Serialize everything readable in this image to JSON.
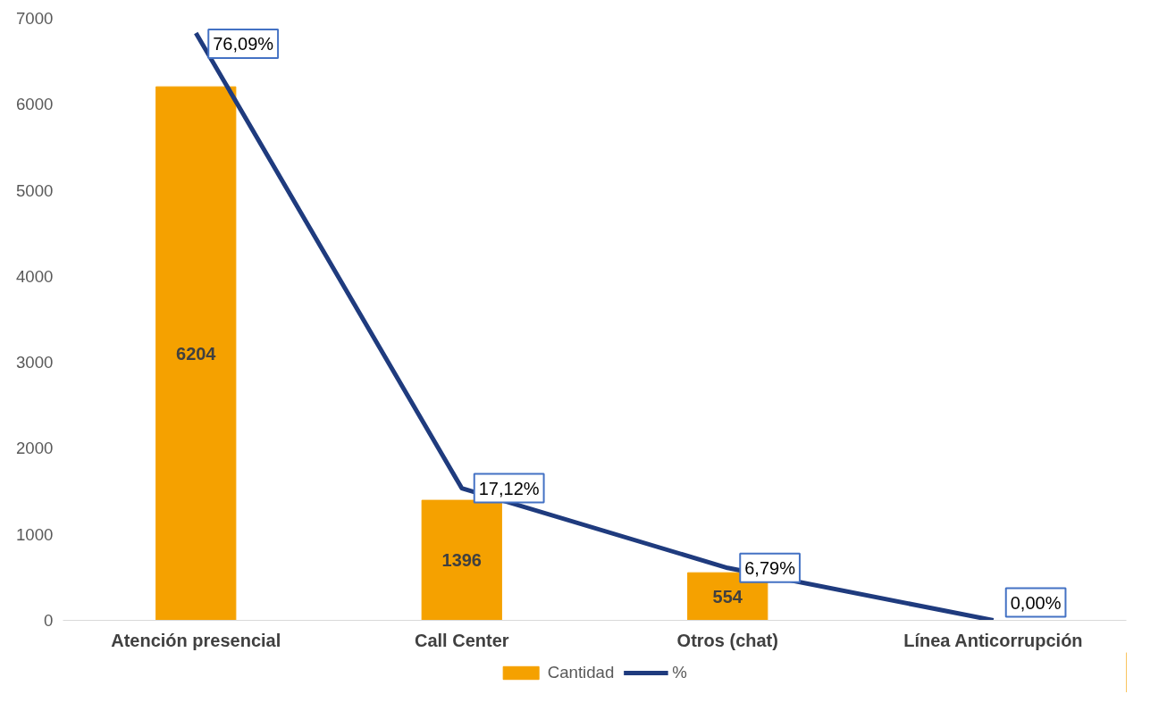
{
  "chart_data": {
    "type": "bar",
    "categories": [
      "Atención presencial",
      "Call Center",
      "Otros (chat)",
      "Línea Anticorrupción"
    ],
    "series": [
      {
        "name": "Cantidad",
        "color": "#f5a100",
        "values": [
          6204,
          1396,
          554,
          0
        ],
        "value_labels": [
          "6204",
          "1396",
          "554",
          null
        ]
      },
      {
        "name": "%",
        "type": "line",
        "axis": "y2",
        "color": "#1f3b7e",
        "values": [
          76.09,
          17.12,
          6.79,
          0.0
        ],
        "value_labels": [
          "76,09%",
          "17,12%",
          "6,79%",
          "0,00%"
        ]
      }
    ],
    "ylim": [
      0,
      7000
    ],
    "yticks": [
      0,
      1000,
      2000,
      3000,
      4000,
      5000,
      6000,
      7000
    ],
    "grid": false,
    "legend": "bottom",
    "marker": "none",
    "line_style": "solid"
  }
}
